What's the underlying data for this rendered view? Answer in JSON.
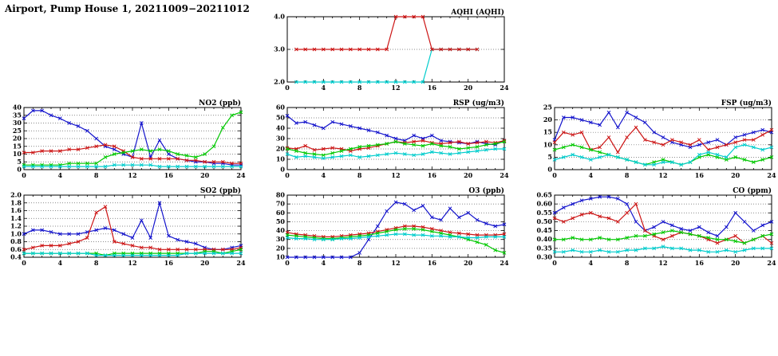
{
  "page": {
    "title": "Airport, Pump House 1, 20211009−20211012"
  },
  "colors": {
    "blue": "#1414cc",
    "red": "#cc1414",
    "green": "#00c800",
    "cyan": "#00cccc"
  },
  "chart_data": [
    {
      "id": "aqhi",
      "type": "line",
      "title": "AQHI (AQHI)",
      "xlabel": "",
      "ylabel": "",
      "grid": "horizontal-dotted",
      "legend": "none",
      "xlim": [
        0,
        24
      ],
      "xticks": [
        0,
        4,
        8,
        12,
        16,
        20,
        24
      ],
      "ylim": [
        2,
        4
      ],
      "yticks": [
        2,
        3,
        4
      ],
      "ydecimals": 1,
      "x": [
        0,
        1,
        2,
        3,
        4,
        5,
        6,
        7,
        8,
        9,
        10,
        11,
        12,
        13,
        14,
        15,
        16,
        17,
        18,
        19,
        20,
        21,
        22,
        23,
        24
      ],
      "series": [
        {
          "name": "cyan-series",
          "color_key": "cyan",
          "values": [
            null,
            2,
            2,
            2,
            2,
            2,
            2,
            2,
            2,
            2,
            2,
            2,
            2,
            2,
            2,
            2,
            3,
            3,
            3,
            3,
            3,
            3,
            null,
            null,
            null
          ]
        },
        {
          "name": "red-series",
          "color_key": "red",
          "values": [
            null,
            3,
            3,
            3,
            3,
            3,
            3,
            3,
            3,
            3,
            3,
            3,
            4,
            4,
            4,
            4,
            3,
            3,
            3,
            3,
            3,
            3,
            null,
            null,
            null
          ]
        }
      ]
    },
    {
      "id": "no2",
      "type": "line",
      "title": "NO2 (ppb)",
      "xlabel": "",
      "ylabel": "",
      "grid": "horizontal-dotted",
      "legend": "none",
      "xlim": [
        0,
        24
      ],
      "xticks": [
        0,
        4,
        8,
        12,
        16,
        20,
        24
      ],
      "ylim": [
        0,
        40
      ],
      "yticks": [
        0,
        5,
        10,
        15,
        20,
        25,
        30,
        35,
        40
      ],
      "ydecimals": 0,
      "x": [
        0,
        1,
        2,
        3,
        4,
        5,
        6,
        7,
        8,
        9,
        10,
        11,
        12,
        13,
        14,
        15,
        16,
        17,
        18,
        19,
        20,
        21,
        22,
        23,
        24
      ],
      "series": [
        {
          "name": "blue-series",
          "color_key": "blue",
          "values": [
            33,
            38,
            38,
            35,
            33,
            30,
            28,
            25,
            20,
            15,
            13,
            10,
            8,
            30,
            8,
            19,
            10,
            7,
            6,
            5,
            5,
            4,
            4,
            3,
            3
          ]
        },
        {
          "name": "red-series",
          "color_key": "red",
          "values": [
            11,
            11,
            12,
            12,
            12,
            13,
            13,
            14,
            15,
            16,
            15,
            12,
            8,
            7,
            7,
            7,
            7,
            7,
            6,
            6,
            5,
            5,
            5,
            4,
            4
          ]
        },
        {
          "name": "green-series",
          "color_key": "green",
          "values": [
            3,
            3,
            3,
            3,
            3,
            4,
            4,
            4,
            4,
            8,
            10,
            11,
            12,
            13,
            12,
            13,
            12,
            10,
            9,
            8,
            10,
            15,
            27,
            35,
            37
          ]
        },
        {
          "name": "cyan-series",
          "color_key": "cyan",
          "values": [
            2,
            2,
            2,
            2,
            2,
            2,
            2,
            2,
            2,
            2,
            3,
            3,
            3,
            3,
            3,
            2,
            2,
            2,
            2,
            2,
            2,
            2,
            2,
            2,
            2
          ]
        }
      ]
    },
    {
      "id": "rsp",
      "type": "line",
      "title": "RSP (ug/m3)",
      "xlabel": "",
      "ylabel": "",
      "grid": "horizontal-dotted",
      "legend": "none",
      "xlim": [
        0,
        24
      ],
      "xticks": [
        0,
        4,
        8,
        12,
        16,
        20,
        24
      ],
      "ylim": [
        0,
        60
      ],
      "yticks": [
        0,
        10,
        20,
        30,
        40,
        50,
        60
      ],
      "ydecimals": 0,
      "x": [
        0,
        1,
        2,
        3,
        4,
        5,
        6,
        7,
        8,
        9,
        10,
        11,
        12,
        13,
        14,
        15,
        16,
        17,
        18,
        19,
        20,
        21,
        22,
        23,
        24
      ],
      "series": [
        {
          "name": "blue-series",
          "color_key": "blue",
          "values": [
            52,
            45,
            46,
            43,
            40,
            46,
            44,
            42,
            40,
            38,
            36,
            33,
            30,
            28,
            33,
            30,
            33,
            28,
            27,
            26,
            25,
            27,
            25,
            24,
            28
          ]
        },
        {
          "name": "red-series",
          "color_key": "red",
          "values": [
            21,
            20,
            23,
            19,
            20,
            21,
            20,
            18,
            20,
            21,
            23,
            25,
            27,
            26,
            27,
            28,
            26,
            25,
            26,
            27,
            25,
            26,
            27,
            26,
            28
          ]
        },
        {
          "name": "green-series",
          "color_key": "green",
          "values": [
            20,
            18,
            16,
            15,
            14,
            16,
            18,
            20,
            22,
            23,
            24,
            25,
            27,
            25,
            24,
            23,
            25,
            23,
            22,
            20,
            21,
            22,
            24,
            25,
            27
          ]
        },
        {
          "name": "cyan-series",
          "color_key": "cyan",
          "values": [
            15,
            12,
            13,
            12,
            11,
            12,
            13,
            14,
            12,
            13,
            14,
            15,
            16,
            15,
            14,
            15,
            17,
            16,
            15,
            16,
            17,
            18,
            19,
            20,
            20
          ]
        }
      ]
    },
    {
      "id": "fsp",
      "type": "line",
      "title": "FSP (ug/m3)",
      "xlabel": "",
      "ylabel": "",
      "grid": "horizontal-dotted",
      "legend": "none",
      "xlim": [
        0,
        24
      ],
      "xticks": [
        0,
        4,
        8,
        12,
        16,
        20,
        24
      ],
      "ylim": [
        0,
        25
      ],
      "yticks": [
        0,
        5,
        10,
        15,
        20,
        25
      ],
      "ydecimals": 0,
      "x": [
        0,
        1,
        2,
        3,
        4,
        5,
        6,
        7,
        8,
        9,
        10,
        11,
        12,
        13,
        14,
        15,
        16,
        17,
        18,
        19,
        20,
        21,
        22,
        23,
        24
      ],
      "series": [
        {
          "name": "blue-series",
          "color_key": "blue",
          "values": [
            12,
            21,
            21,
            20,
            19,
            18,
            23,
            17,
            23,
            21,
            19,
            15,
            13,
            11,
            10,
            9,
            10,
            11,
            12,
            10,
            13,
            14,
            15,
            16,
            15
          ]
        },
        {
          "name": "red-series",
          "color_key": "red",
          "values": [
            11,
            15,
            14,
            15,
            8,
            9,
            13,
            7,
            13,
            17,
            12,
            11,
            10,
            12,
            11,
            10,
            12,
            8,
            9,
            10,
            11,
            12,
            12,
            14,
            16
          ]
        },
        {
          "name": "green-series",
          "color_key": "green",
          "values": [
            8,
            9,
            10,
            9,
            8,
            7,
            6,
            5,
            4,
            3,
            2,
            3,
            4,
            3,
            2,
            3,
            5,
            6,
            5,
            4,
            5,
            4,
            3,
            4,
            5
          ]
        },
        {
          "name": "cyan-series",
          "color_key": "cyan",
          "values": [
            4,
            5,
            6,
            5,
            4,
            5,
            6,
            5,
            4,
            3,
            2,
            2,
            3,
            3,
            2,
            3,
            6,
            7,
            6,
            5,
            9,
            10,
            9,
            8,
            9
          ]
        }
      ]
    },
    {
      "id": "so2",
      "type": "line",
      "title": "SO2 (ppb)",
      "xlabel": "",
      "ylabel": "",
      "grid": "horizontal-dotted",
      "legend": "none",
      "xlim": [
        0,
        24
      ],
      "xticks": [
        0,
        4,
        8,
        12,
        16,
        20,
        24
      ],
      "ylim": [
        0.4,
        2.0
      ],
      "yticks": [
        0.4,
        0.6,
        0.8,
        1.0,
        1.2,
        1.4,
        1.6,
        1.8,
        2.0
      ],
      "ydecimals": 1,
      "x": [
        0,
        1,
        2,
        3,
        4,
        5,
        6,
        7,
        8,
        9,
        10,
        11,
        12,
        13,
        14,
        15,
        16,
        17,
        18,
        19,
        20,
        21,
        22,
        23,
        24
      ],
      "series": [
        {
          "name": "blue-series",
          "color_key": "blue",
          "values": [
            1.0,
            1.1,
            1.1,
            1.05,
            1.0,
            1.0,
            1.0,
            1.05,
            1.1,
            1.15,
            1.1,
            1.0,
            0.9,
            1.35,
            0.9,
            1.8,
            0.95,
            0.85,
            0.8,
            0.75,
            0.65,
            0.6,
            0.6,
            0.65,
            0.7
          ]
        },
        {
          "name": "red-series",
          "color_key": "red",
          "values": [
            0.6,
            0.65,
            0.7,
            0.7,
            0.7,
            0.75,
            0.8,
            0.9,
            1.55,
            1.7,
            0.8,
            0.75,
            0.7,
            0.65,
            0.65,
            0.6,
            0.6,
            0.6,
            0.6,
            0.6,
            0.6,
            0.6,
            0.6,
            0.6,
            0.65
          ]
        },
        {
          "name": "green-series",
          "color_key": "green",
          "values": [
            0.5,
            0.5,
            0.5,
            0.5,
            0.5,
            0.5,
            0.5,
            0.5,
            0.5,
            0.45,
            0.5,
            0.5,
            0.5,
            0.5,
            0.5,
            0.5,
            0.5,
            0.5,
            0.5,
            0.5,
            0.55,
            0.55,
            0.5,
            0.55,
            0.6
          ]
        },
        {
          "name": "cyan-series",
          "color_key": "cyan",
          "values": [
            0.5,
            0.5,
            0.5,
            0.5,
            0.5,
            0.5,
            0.5,
            0.5,
            0.45,
            0.45,
            0.45,
            0.45,
            0.45,
            0.45,
            0.45,
            0.45,
            0.45,
            0.45,
            0.5,
            0.5,
            0.5,
            0.5,
            0.5,
            0.5,
            0.5
          ]
        }
      ]
    },
    {
      "id": "o3",
      "type": "line",
      "title": "O3 (ppb)",
      "xlabel": "",
      "ylabel": "",
      "grid": "horizontal-dotted",
      "legend": "none",
      "xlim": [
        0,
        24
      ],
      "xticks": [
        0,
        4,
        8,
        12,
        16,
        20,
        24
      ],
      "ylim": [
        10,
        80
      ],
      "yticks": [
        10,
        20,
        30,
        40,
        50,
        60,
        70,
        80
      ],
      "ydecimals": 0,
      "x": [
        0,
        1,
        2,
        3,
        4,
        5,
        6,
        7,
        8,
        9,
        10,
        11,
        12,
        13,
        14,
        15,
        16,
        17,
        18,
        19,
        20,
        21,
        22,
        23,
        24
      ],
      "series": [
        {
          "name": "blue-series",
          "color_key": "blue",
          "values": [
            10,
            10,
            10,
            10,
            10,
            10,
            10,
            10,
            15,
            30,
            45,
            62,
            72,
            70,
            63,
            68,
            55,
            52,
            65,
            55,
            60,
            52,
            48,
            45,
            47
          ]
        },
        {
          "name": "red-series",
          "color_key": "red",
          "values": [
            38,
            36,
            35,
            34,
            33,
            33,
            34,
            35,
            36,
            37,
            39,
            41,
            43,
            45,
            45,
            44,
            42,
            40,
            38,
            37,
            36,
            35,
            35,
            35,
            36
          ]
        },
        {
          "name": "green-series",
          "color_key": "green",
          "values": [
            35,
            34,
            33,
            32,
            31,
            31,
            32,
            33,
            34,
            35,
            37,
            39,
            41,
            42,
            42,
            41,
            39,
            37,
            35,
            33,
            30,
            27,
            24,
            18,
            15
          ]
        },
        {
          "name": "cyan-series",
          "color_key": "cyan",
          "values": [
            32,
            31,
            31,
            30,
            30,
            30,
            31,
            31,
            32,
            33,
            34,
            35,
            36,
            36,
            35,
            35,
            34,
            34,
            33,
            33,
            32,
            32,
            33,
            33,
            33
          ]
        }
      ]
    },
    {
      "id": "co",
      "type": "line",
      "title": "CO (ppm)",
      "xlabel": "",
      "ylabel": "",
      "grid": "horizontal-dotted",
      "legend": "none",
      "xlim": [
        0,
        24
      ],
      "xticks": [
        0,
        4,
        8,
        12,
        16,
        20,
        24
      ],
      "ylim": [
        0.3,
        0.65
      ],
      "yticks": [
        0.3,
        0.35,
        0.4,
        0.45,
        0.5,
        0.55,
        0.6,
        0.65
      ],
      "ydecimals": 2,
      "x": [
        0,
        1,
        2,
        3,
        4,
        5,
        6,
        7,
        8,
        9,
        10,
        11,
        12,
        13,
        14,
        15,
        16,
        17,
        18,
        19,
        20,
        21,
        22,
        23,
        24
      ],
      "series": [
        {
          "name": "blue-series",
          "color_key": "blue",
          "values": [
            0.55,
            0.58,
            0.6,
            0.62,
            0.63,
            0.64,
            0.64,
            0.63,
            0.6,
            0.5,
            0.45,
            0.47,
            0.5,
            0.48,
            0.46,
            0.45,
            0.47,
            0.44,
            0.42,
            0.47,
            0.55,
            0.5,
            0.45,
            0.48,
            0.5
          ]
        },
        {
          "name": "red-series",
          "color_key": "red",
          "values": [
            0.52,
            0.5,
            0.52,
            0.54,
            0.55,
            0.53,
            0.52,
            0.5,
            0.55,
            0.6,
            0.45,
            0.42,
            0.4,
            0.42,
            0.44,
            0.43,
            0.42,
            0.4,
            0.38,
            0.4,
            0.42,
            0.38,
            0.4,
            0.42,
            0.38
          ]
        },
        {
          "name": "green-series",
          "color_key": "green",
          "values": [
            0.4,
            0.4,
            0.41,
            0.4,
            0.4,
            0.41,
            0.4,
            0.4,
            0.41,
            0.42,
            0.42,
            0.43,
            0.44,
            0.45,
            0.44,
            0.43,
            0.42,
            0.41,
            0.4,
            0.4,
            0.39,
            0.38,
            0.4,
            0.42,
            0.43
          ]
        },
        {
          "name": "cyan-series",
          "color_key": "cyan",
          "values": [
            0.33,
            0.33,
            0.34,
            0.33,
            0.33,
            0.34,
            0.33,
            0.33,
            0.34,
            0.34,
            0.35,
            0.35,
            0.36,
            0.35,
            0.35,
            0.34,
            0.34,
            0.33,
            0.33,
            0.34,
            0.33,
            0.34,
            0.35,
            0.35,
            0.35
          ]
        }
      ]
    }
  ]
}
